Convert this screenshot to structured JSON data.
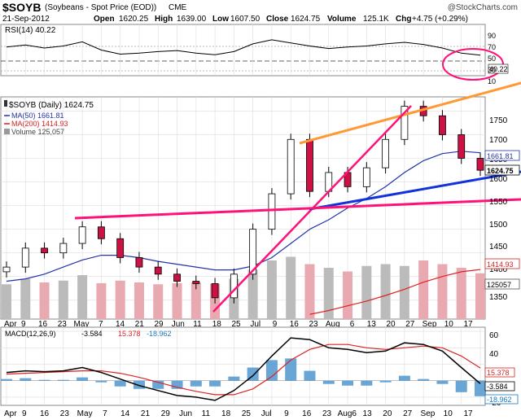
{
  "header": {
    "symbol": "$SOYB",
    "name": "(Soybeans - Spot Price (EOD))",
    "exchange": "CME",
    "watermark": "@StockCharts.com",
    "date": "21-Sep-2012",
    "open_label": "Open",
    "open": "1620.25",
    "high_label": "High",
    "high": "1639.00",
    "low_label": "Low",
    "low": "1607.50",
    "close_label": "Close",
    "close": "1624.75",
    "volume_label": "Volume",
    "volume": "125.1K",
    "chg_label": "Chg",
    "chg": "+4.75 (+0.29%)"
  },
  "rsi": {
    "legend": "RSI(14) 40.22",
    "value_badge": "40.22",
    "ticks": [
      "90",
      "70",
      "50",
      "30",
      "10"
    ]
  },
  "price": {
    "legend_title": "$SOYB (Daily) 1624.75",
    "legend_ma50": "MA(50) 1661.81",
    "legend_ma200": "MA(200) 1414.93",
    "legend_volume": "Volume 125,057",
    "ticks": [
      "1750",
      "1700",
      "1650",
      "1600",
      "1550",
      "1500",
      "1450",
      "1400",
      "1350"
    ],
    "badges": {
      "ma50": "1661.81",
      "close": "1624.75",
      "ma200": "1414.93",
      "volume": "125057"
    }
  },
  "macd": {
    "legend_name": "MACD(12,26,9)",
    "legend_macd": "-3.584",
    "legend_signal": "15.378",
    "legend_hist": "-18.962",
    "ticks": [
      "60",
      "40",
      "20",
      "0",
      "-20"
    ],
    "badges": {
      "signal": "15.378",
      "macd": "-3.584",
      "hist": "-18.962"
    }
  },
  "x_labels": {
    "price": [
      "Apr",
      "9",
      "16",
      "23",
      "May",
      "7",
      "14",
      "21",
      "29",
      "Jun",
      "11",
      "18",
      "25",
      "Jul",
      "9",
      "16",
      "23",
      "Aug",
      "6",
      "13",
      "20",
      "27",
      "Sep",
      "10",
      "17"
    ],
    "macd": [
      "Apr",
      "9",
      "16",
      "23",
      "May",
      "7",
      "14",
      "21",
      "29",
      "Jun",
      "11",
      "18",
      "25",
      "Jul",
      "9",
      "16",
      "23",
      "Aug6",
      "13",
      "20",
      "27",
      "Sep",
      "10",
      "17"
    ]
  },
  "colors": {
    "up": "#ffffff",
    "down": "#cc1144",
    "ma50": "#2233aa",
    "ma200": "#dd2222",
    "volume_up": "#bbbbbb",
    "volume_down": "#e8a9b0",
    "orange": "#ff9933",
    "pink": "#ff1177",
    "blue": "#1133dd",
    "hist": "#4f97cf",
    "macd": "#000000",
    "signal": "#dd2222"
  },
  "chart_data": [
    {
      "type": "line",
      "name": "RSI(14)",
      "ylim": [
        0,
        100
      ],
      "x": [
        "2012-04-02",
        "2012-04-09",
        "2012-04-16",
        "2012-04-23",
        "2012-04-30",
        "2012-05-07",
        "2012-05-14",
        "2012-05-21",
        "2012-05-29",
        "2012-06-04",
        "2012-06-11",
        "2012-06-18",
        "2012-06-25",
        "2012-07-02",
        "2012-07-09",
        "2012-07-16",
        "2012-07-23",
        "2012-07-30",
        "2012-08-06",
        "2012-08-13",
        "2012-08-20",
        "2012-08-27",
        "2012-09-04",
        "2012-09-10",
        "2012-09-17",
        "2012-09-21"
      ],
      "values": [
        56,
        60,
        54,
        58,
        66,
        50,
        42,
        44,
        47,
        49,
        44,
        41,
        47,
        62,
        70,
        64,
        58,
        53,
        56,
        58,
        62,
        65,
        61,
        54,
        44,
        40.22
      ]
    },
    {
      "type": "candlestick",
      "name": "$SOYB (Daily)",
      "ylim": [
        1310,
        1780
      ],
      "x": [
        "2012-04-02",
        "2012-04-09",
        "2012-04-16",
        "2012-04-23",
        "2012-04-30",
        "2012-05-07",
        "2012-05-14",
        "2012-05-21",
        "2012-05-29",
        "2012-06-04",
        "2012-06-11",
        "2012-06-18",
        "2012-06-25",
        "2012-07-02",
        "2012-07-09",
        "2012-07-16",
        "2012-07-23",
        "2012-07-30",
        "2012-08-06",
        "2012-08-13",
        "2012-08-20",
        "2012-08-27",
        "2012-09-04",
        "2012-09-10",
        "2012-09-17",
        "2012-09-21"
      ],
      "close": [
        1420,
        1460,
        1450,
        1470,
        1505,
        1480,
        1440,
        1420,
        1405,
        1390,
        1385,
        1355,
        1405,
        1500,
        1575,
        1690,
        1580,
        1620,
        1590,
        1630,
        1690,
        1760,
        1740,
        1700,
        1650,
        1624.75
      ],
      "ma50": [
        1390,
        1395,
        1405,
        1420,
        1435,
        1445,
        1445,
        1440,
        1432,
        1426,
        1420,
        1414,
        1414,
        1422,
        1440,
        1470,
        1500,
        1520,
        1545,
        1565,
        1590,
        1620,
        1645,
        1660,
        1665,
        1661.81
      ],
      "ma200": [
        null,
        null,
        null,
        null,
        null,
        null,
        null,
        null,
        null,
        null,
        null,
        null,
        null,
        null,
        null,
        null,
        1320,
        1328,
        1338,
        1348,
        1360,
        1373,
        1388,
        1400,
        1410,
        1414.93
      ],
      "volume": [
        95000,
        110000,
        100000,
        105000,
        120000,
        98000,
        105000,
        100000,
        95000,
        98000,
        100000,
        96000,
        110000,
        135000,
        160000,
        170000,
        150000,
        140000,
        130000,
        145000,
        150000,
        145000,
        160000,
        150000,
        140000,
        125057
      ]
    },
    {
      "type": "line",
      "name": "MACD(12,26,9)",
      "ylim": [
        -30,
        65
      ],
      "x": [
        "2012-04-02",
        "2012-04-09",
        "2012-04-16",
        "2012-04-23",
        "2012-04-30",
        "2012-05-07",
        "2012-05-14",
        "2012-05-21",
        "2012-05-29",
        "2012-06-04",
        "2012-06-11",
        "2012-06-18",
        "2012-06-25",
        "2012-07-02",
        "2012-07-09",
        "2012-07-16",
        "2012-07-23",
        "2012-07-30",
        "2012-08-06",
        "2012-08-13",
        "2012-08-20",
        "2012-08-27",
        "2012-09-04",
        "2012-09-10",
        "2012-09-17",
        "2012-09-21"
      ],
      "series": [
        {
          "name": "MACD",
          "values": [
            10,
            12,
            11,
            12,
            16,
            10,
            2,
            -6,
            -12,
            -18,
            -20,
            -24,
            -12,
            6,
            30,
            52,
            50,
            40,
            38,
            34,
            36,
            46,
            44,
            36,
            16,
            -3.584
          ]
        },
        {
          "name": "Signal",
          "values": [
            8,
            9,
            10,
            11,
            12,
            12,
            9,
            4,
            -2,
            -8,
            -13,
            -17,
            -17,
            -10,
            5,
            25,
            38,
            44,
            44,
            40,
            38,
            40,
            42,
            40,
            30,
            15.378
          ]
        },
        {
          "name": "Histogram",
          "values": [
            2,
            3,
            1,
            1,
            4,
            -2,
            -7,
            -10,
            -10,
            -10,
            -7,
            -7,
            5,
            16,
            25,
            27,
            12,
            -4,
            -6,
            -6,
            -2,
            6,
            2,
            -4,
            -14,
            -18.962
          ]
        }
      ]
    }
  ]
}
